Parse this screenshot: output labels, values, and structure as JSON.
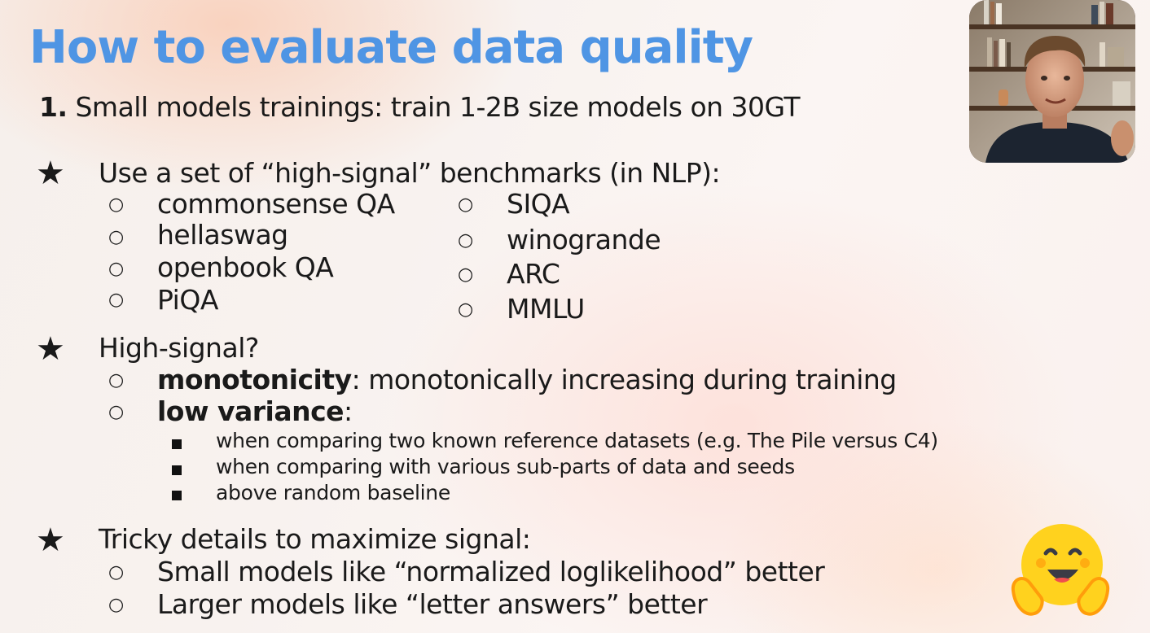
{
  "slide": {
    "title": "How to evaluate data quality",
    "subtitle": {
      "number": "1.",
      "text": " Small models trainings: train 1-2B size models on 30GT"
    },
    "star_glyph": "★",
    "circle_glyph": "○",
    "section1": {
      "heading": "Use a set of “high-signal” benchmarks (in NLP):",
      "benchmarks_left": [
        "commonsense QA",
        "hellaswag",
        "openbook QA",
        "PiQA"
      ],
      "benchmarks_right": [
        "SIQA",
        "winogrande",
        "ARC",
        "MMLU"
      ]
    },
    "section2": {
      "heading": "High-signal?",
      "items": [
        {
          "bold": "monotonicity",
          "rest": ": monotonically increasing during training"
        },
        {
          "bold": "low variance",
          "rest": ":"
        }
      ],
      "subitems": [
        "when comparing two known reference datasets (e.g. The Pile versus C4)",
        "when comparing with various sub-parts of data and seeds",
        "above random baseline"
      ]
    },
    "section3": {
      "heading": "Tricky details to maximize signal:",
      "items": [
        "Small models like “normalized loglikelihood” better",
        "Larger models like “letter answers” better"
      ]
    }
  },
  "colors": {
    "title": "#4f95e4",
    "text": "#1a1a1a",
    "hf_yellow": "#ffd21e",
    "hf_orange": "#ff9d0b"
  },
  "icons": {
    "webcam": "presenter-webcam-feed",
    "logo": "hugging-face-logo"
  }
}
